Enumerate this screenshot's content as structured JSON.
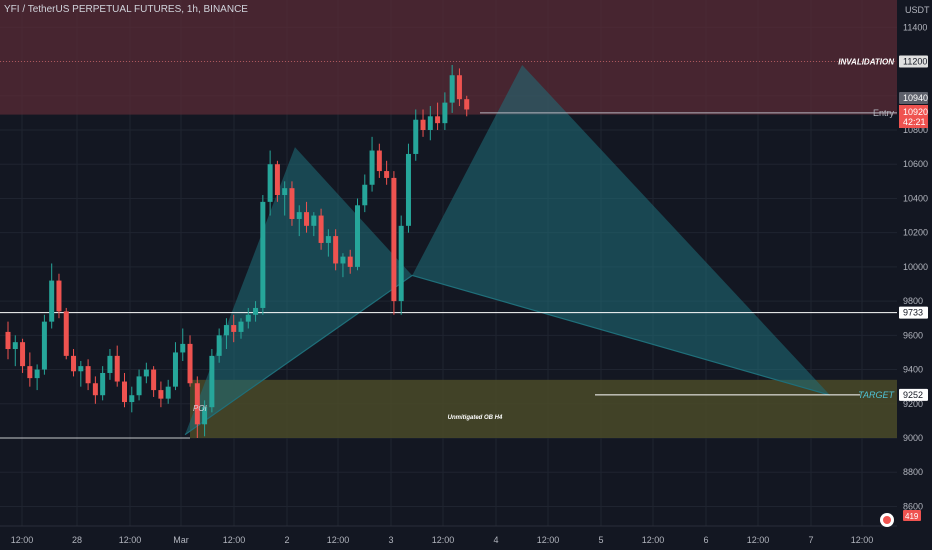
{
  "header": {
    "title": "YFI / TetherUS PERPETUAL FUTURES, 1h, BINANCE"
  },
  "colors": {
    "background": "#131722",
    "grid": "#1f2430",
    "bull": "#26a69a",
    "bear": "#ef5350",
    "invalidation_zone": "#5a2b36",
    "target_zone": "#4a4a28",
    "harmonic_fill": "#1f6f7a",
    "white_line": "#ffffff"
  },
  "chart_data": {
    "type": "candlestick",
    "title": "YFI / TetherUS PERPETUAL FUTURES, 1h, BINANCE",
    "y_axis": {
      "unit": "USDT",
      "ylim": [
        8500,
        11700
      ],
      "ticks": [
        8600,
        8800,
        9000,
        9200,
        9400,
        9600,
        9800,
        10000,
        10200,
        10400,
        10600,
        10800,
        11000,
        11200,
        11400
      ]
    },
    "x_axis": {
      "ticks": [
        "12:00",
        "28",
        "12:00",
        "Mar",
        "12:00",
        "2",
        "12:00",
        "3",
        "12:00",
        "4",
        "12:00",
        "5",
        "12:00",
        "6",
        "12:00",
        "7",
        "12:00"
      ]
    },
    "price_labels": {
      "invalidation": "11200",
      "current_high": "10940",
      "current": "10920",
      "countdown": "42:21",
      "support": "9733",
      "target": "9252",
      "bottom": "419"
    },
    "annotations": {
      "invalidation": "INVALIDATION",
      "entry": "Entry",
      "target": "TARGET",
      "ob": "Unmitigated OB H4",
      "poi": "POI"
    },
    "levels": {
      "invalidation": 11200,
      "entry": 10900,
      "support": 9733,
      "target": 9252,
      "invalidation_zone": [
        10890,
        11700
      ],
      "target_zone": [
        9000,
        9340
      ]
    },
    "harmonic_points": [
      {
        "t": 0,
        "price": 9020
      },
      {
        "t": 15,
        "price": 10700
      },
      {
        "t": 31,
        "price": 9950
      },
      {
        "t": 46,
        "price": 11180
      },
      {
        "t": 88,
        "price": 9250
      }
    ],
    "harmonic_midpoint": {
      "t": 38,
      "price": 9750
    },
    "candles": [
      [
        9620,
        9680,
        9460,
        9520
      ],
      [
        9520,
        9600,
        9420,
        9560
      ],
      [
        9560,
        9580,
        9380,
        9420
      ],
      [
        9420,
        9500,
        9300,
        9350
      ],
      [
        9350,
        9430,
        9280,
        9400
      ],
      [
        9400,
        9720,
        9370,
        9680
      ],
      [
        9680,
        10020,
        9640,
        9920
      ],
      [
        9920,
        9960,
        9700,
        9740
      ],
      [
        9740,
        9760,
        9460,
        9480
      ],
      [
        9480,
        9520,
        9360,
        9390
      ],
      [
        9390,
        9450,
        9300,
        9420
      ],
      [
        9420,
        9460,
        9280,
        9320
      ],
      [
        9320,
        9360,
        9200,
        9250
      ],
      [
        9250,
        9420,
        9220,
        9380
      ],
      [
        9380,
        9520,
        9340,
        9480
      ],
      [
        9480,
        9540,
        9300,
        9330
      ],
      [
        9330,
        9380,
        9180,
        9210
      ],
      [
        9210,
        9300,
        9150,
        9250
      ],
      [
        9250,
        9400,
        9220,
        9360
      ],
      [
        9360,
        9440,
        9320,
        9400
      ],
      [
        9400,
        9420,
        9240,
        9280
      ],
      [
        9280,
        9330,
        9180,
        9230
      ],
      [
        9230,
        9340,
        9200,
        9300
      ],
      [
        9300,
        9560,
        9280,
        9500
      ],
      [
        9500,
        9640,
        9450,
        9550
      ],
      [
        9550,
        9600,
        9300,
        9320
      ],
      [
        9320,
        9360,
        9000,
        9080
      ],
      [
        9080,
        9220,
        9010,
        9180
      ],
      [
        9180,
        9520,
        9150,
        9480
      ],
      [
        9480,
        9640,
        9440,
        9600
      ],
      [
        9600,
        9700,
        9520,
        9660
      ],
      [
        9660,
        9720,
        9560,
        9620
      ],
      [
        9620,
        9700,
        9580,
        9680
      ],
      [
        9680,
        9760,
        9640,
        9720
      ],
      [
        9720,
        9800,
        9680,
        9760
      ],
      [
        9760,
        10420,
        9720,
        10380
      ],
      [
        10380,
        10680,
        10300,
        10600
      ],
      [
        10600,
        10620,
        10380,
        10420
      ],
      [
        10420,
        10500,
        10300,
        10460
      ],
      [
        10460,
        10500,
        10240,
        10280
      ],
      [
        10280,
        10360,
        10180,
        10320
      ],
      [
        10320,
        10380,
        10200,
        10240
      ],
      [
        10240,
        10320,
        10180,
        10300
      ],
      [
        10300,
        10340,
        10100,
        10140
      ],
      [
        10140,
        10220,
        10060,
        10180
      ],
      [
        10180,
        10220,
        9980,
        10020
      ],
      [
        10020,
        10080,
        9940,
        10060
      ],
      [
        10060,
        10100,
        9960,
        10000
      ],
      [
        10000,
        10400,
        9980,
        10360
      ],
      [
        10360,
        10540,
        10320,
        10480
      ],
      [
        10480,
        10760,
        10440,
        10680
      ],
      [
        10680,
        10720,
        10520,
        10560
      ],
      [
        10560,
        10620,
        10480,
        10520
      ],
      [
        10520,
        10560,
        9720,
        9800
      ],
      [
        9800,
        10300,
        9720,
        10240
      ],
      [
        10240,
        10720,
        10200,
        10660
      ],
      [
        10660,
        10920,
        10620,
        10860
      ],
      [
        10860,
        10920,
        10760,
        10800
      ],
      [
        10800,
        10940,
        10740,
        10880
      ],
      [
        10880,
        10960,
        10800,
        10840
      ],
      [
        10840,
        11020,
        10800,
        10960
      ],
      [
        10960,
        11180,
        10900,
        11120
      ],
      [
        11120,
        11160,
        10940,
        10980
      ],
      [
        10980,
        11000,
        10880,
        10920
      ]
    ]
  }
}
